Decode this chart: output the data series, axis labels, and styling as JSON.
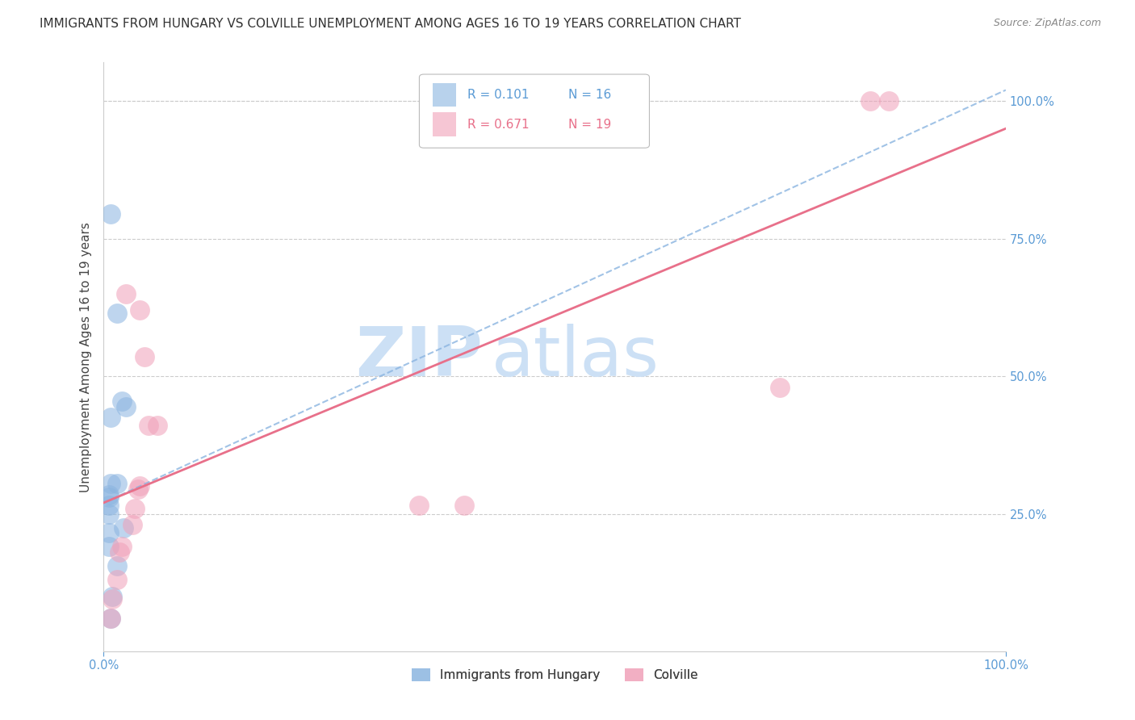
{
  "title": "IMMIGRANTS FROM HUNGARY VS COLVILLE UNEMPLOYMENT AMONG AGES 16 TO 19 YEARS CORRELATION CHART",
  "source": "Source: ZipAtlas.com",
  "ylabel": "Unemployment Among Ages 16 to 19 years",
  "legend_label1": "Immigrants from Hungary",
  "legend_label2": "Colville",
  "color_blue": "#8ab4e0",
  "color_pink": "#f0a0b8",
  "color_line_blue": "#8ab4e0",
  "color_line_pink": "#e8708a",
  "watermark_zip": "ZIP",
  "watermark_atlas": "atlas",
  "blue_scatter_x": [
    0.008,
    0.015,
    0.02,
    0.025,
    0.008,
    0.008,
    0.015,
    0.022,
    0.006,
    0.006,
    0.006,
    0.006,
    0.006,
    0.006,
    0.015,
    0.01,
    0.008
  ],
  "blue_scatter_y": [
    0.795,
    0.615,
    0.455,
    0.445,
    0.425,
    0.305,
    0.305,
    0.225,
    0.285,
    0.28,
    0.265,
    0.25,
    0.215,
    0.19,
    0.155,
    0.1,
    0.06
  ],
  "pink_scatter_x": [
    0.025,
    0.04,
    0.045,
    0.06,
    0.04,
    0.038,
    0.35,
    0.4,
    0.85,
    0.87,
    0.75,
    0.05,
    0.035,
    0.032,
    0.02,
    0.018,
    0.015,
    0.01,
    0.008
  ],
  "pink_scatter_y": [
    0.65,
    0.62,
    0.535,
    0.41,
    0.3,
    0.295,
    0.265,
    0.265,
    1.0,
    1.0,
    0.48,
    0.41,
    0.26,
    0.23,
    0.19,
    0.18,
    0.13,
    0.095,
    0.06
  ],
  "blue_line_x": [
    0.0,
    1.0
  ],
  "blue_line_y": [
    0.27,
    1.02
  ],
  "pink_line_x": [
    0.0,
    1.0
  ],
  "pink_line_y": [
    0.27,
    0.95
  ],
  "xlim": [
    0.0,
    1.0
  ],
  "ylim": [
    0.0,
    1.07
  ],
  "y_ticks": [
    0.25,
    0.5,
    0.75,
    1.0
  ],
  "y_tick_labels": [
    "25.0%",
    "50.0%",
    "75.0%",
    "100.0%"
  ],
  "x_ticks": [
    0.0,
    1.0
  ],
  "x_tick_labels": [
    "0.0%",
    "100.0%"
  ],
  "title_fontsize": 11,
  "source_fontsize": 9,
  "axis_label_fontsize": 11,
  "tick_fontsize": 10.5,
  "legend_fontsize": 11,
  "watermark_fontsize_zip": 62,
  "watermark_fontsize_atlas": 62,
  "watermark_color": "#cce0f5",
  "tick_color": "#5b9bd5",
  "background_color": "#ffffff",
  "grid_color": "#cccccc"
}
